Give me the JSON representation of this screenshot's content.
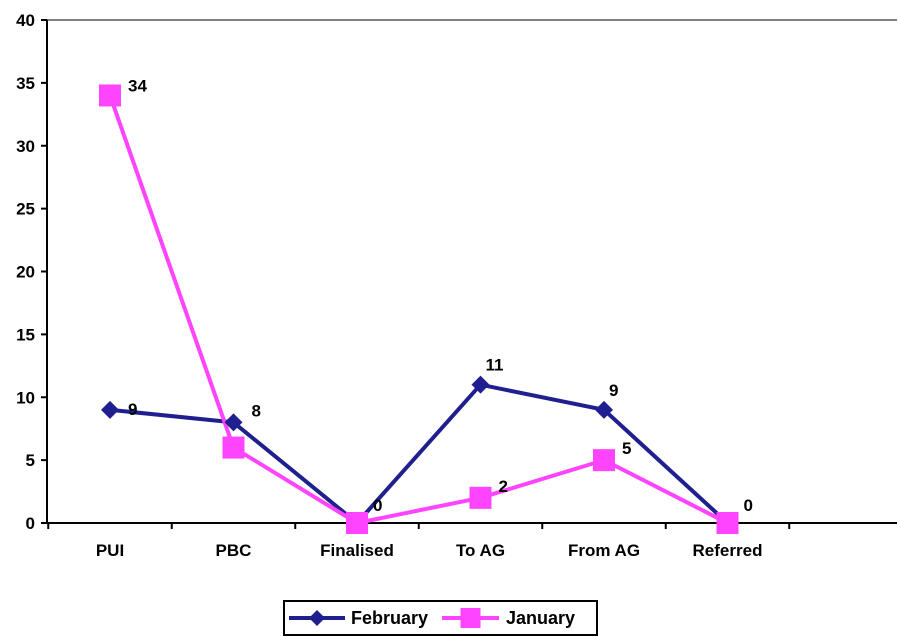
{
  "chart_data": {
    "type": "line",
    "categories": [
      "PUI",
      "PBC",
      "Finalised",
      "To AG",
      "From AG",
      "Referred"
    ],
    "ylim": [
      0,
      40
    ],
    "yticks": [
      0,
      5,
      10,
      15,
      20,
      25,
      30,
      35,
      40
    ],
    "grid": false,
    "legend_position": "bottom",
    "series": [
      {
        "name": "February",
        "values": [
          9,
          8,
          0,
          11,
          9,
          0
        ],
        "color": "#1f1f8f",
        "marker": "diamond",
        "labels_shown": [
          true,
          true,
          false,
          true,
          true,
          false
        ]
      },
      {
        "name": "January",
        "values": [
          34,
          6,
          0,
          2,
          5,
          0
        ],
        "color": "#ff44ff",
        "marker": "square",
        "labels_shown": [
          true,
          false,
          true,
          true,
          true,
          true
        ]
      }
    ]
  }
}
